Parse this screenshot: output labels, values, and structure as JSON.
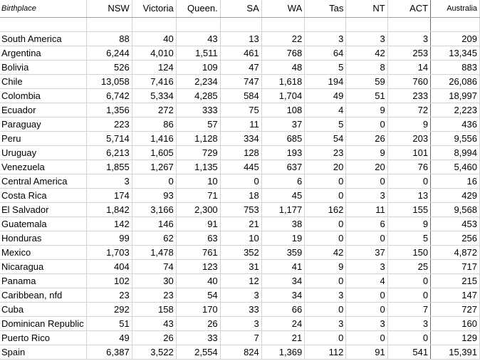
{
  "header": {
    "birthplace": "Birthplace",
    "nsw": "NSW",
    "victoria": "Victoria",
    "queensland": "Queen.",
    "sa": "SA",
    "wa": "WA",
    "tas": "Tas",
    "nt": "NT",
    "act": "ACT",
    "australia": "Australia"
  },
  "rows": [
    {
      "name": "",
      "values": [
        "",
        "",
        "",
        "",
        "",
        "",
        "",
        "",
        ""
      ]
    },
    {
      "name": "South America",
      "values": [
        "88",
        "40",
        "43",
        "13",
        "22",
        "3",
        "3",
        "3",
        "209"
      ]
    },
    {
      "name": "Argentina",
      "values": [
        "6,244",
        "4,010",
        "1,511",
        "461",
        "768",
        "64",
        "42",
        "253",
        "13,345"
      ]
    },
    {
      "name": "Bolivia",
      "values": [
        "526",
        "124",
        "109",
        "47",
        "48",
        "5",
        "8",
        "14",
        "883"
      ]
    },
    {
      "name": "Chile",
      "values": [
        "13,058",
        "7,416",
        "2,234",
        "747",
        "1,618",
        "194",
        "59",
        "760",
        "26,086"
      ]
    },
    {
      "name": "Colombia",
      "values": [
        "6,742",
        "5,334",
        "4,285",
        "584",
        "1,704",
        "49",
        "51",
        "233",
        "18,997"
      ]
    },
    {
      "name": "Ecuador",
      "values": [
        "1,356",
        "272",
        "333",
        "75",
        "108",
        "4",
        "9",
        "72",
        "2,223"
      ]
    },
    {
      "name": "Paraguay",
      "values": [
        "223",
        "86",
        "57",
        "11",
        "37",
        "5",
        "0",
        "9",
        "436"
      ]
    },
    {
      "name": "Peru",
      "values": [
        "5,714",
        "1,416",
        "1,128",
        "334",
        "685",
        "54",
        "26",
        "203",
        "9,556"
      ]
    },
    {
      "name": "Uruguay",
      "values": [
        "6,213",
        "1,605",
        "729",
        "128",
        "193",
        "23",
        "9",
        "101",
        "8,994"
      ]
    },
    {
      "name": "Venezuela",
      "values": [
        "1,855",
        "1,267",
        "1,135",
        "445",
        "637",
        "20",
        "20",
        "76",
        "5,460"
      ]
    },
    {
      "name": "Central America",
      "values": [
        "3",
        "0",
        "10",
        "0",
        "6",
        "0",
        "0",
        "0",
        "16"
      ]
    },
    {
      "name": "Costa Rica",
      "values": [
        "174",
        "93",
        "71",
        "18",
        "45",
        "0",
        "3",
        "13",
        "429"
      ]
    },
    {
      "name": "El Salvador",
      "values": [
        "1,842",
        "3,166",
        "2,300",
        "753",
        "1,177",
        "162",
        "11",
        "155",
        "9,568"
      ]
    },
    {
      "name": "Guatemala",
      "values": [
        "142",
        "146",
        "91",
        "21",
        "38",
        "0",
        "6",
        "9",
        "453"
      ]
    },
    {
      "name": "Honduras",
      "values": [
        "99",
        "62",
        "63",
        "10",
        "19",
        "0",
        "0",
        "5",
        "256"
      ]
    },
    {
      "name": "Mexico",
      "values": [
        "1,703",
        "1,478",
        "761",
        "352",
        "359",
        "42",
        "37",
        "150",
        "4,872"
      ]
    },
    {
      "name": "Nicaragua",
      "values": [
        "404",
        "74",
        "123",
        "31",
        "41",
        "9",
        "3",
        "25",
        "717"
      ]
    },
    {
      "name": "Panama",
      "values": [
        "102",
        "30",
        "40",
        "12",
        "34",
        "0",
        "4",
        "0",
        "215"
      ]
    },
    {
      "name": "Caribbean, nfd",
      "values": [
        "23",
        "23",
        "54",
        "3",
        "34",
        "3",
        "0",
        "0",
        "147"
      ]
    },
    {
      "name": "Cuba",
      "values": [
        "292",
        "158",
        "170",
        "33",
        "66",
        "0",
        "0",
        "7",
        "727"
      ]
    },
    {
      "name": "Dominican Republic",
      "values": [
        "51",
        "43",
        "26",
        "3",
        "24",
        "3",
        "3",
        "3",
        "160"
      ]
    },
    {
      "name": "Puerto Rico",
      "values": [
        "49",
        "26",
        "33",
        "7",
        "21",
        "0",
        "0",
        "0",
        "129"
      ]
    },
    {
      "name": "Spain",
      "values": [
        "6,387",
        "3,522",
        "2,554",
        "824",
        "1,369",
        "112",
        "91",
        "541",
        "15,391"
      ]
    }
  ]
}
